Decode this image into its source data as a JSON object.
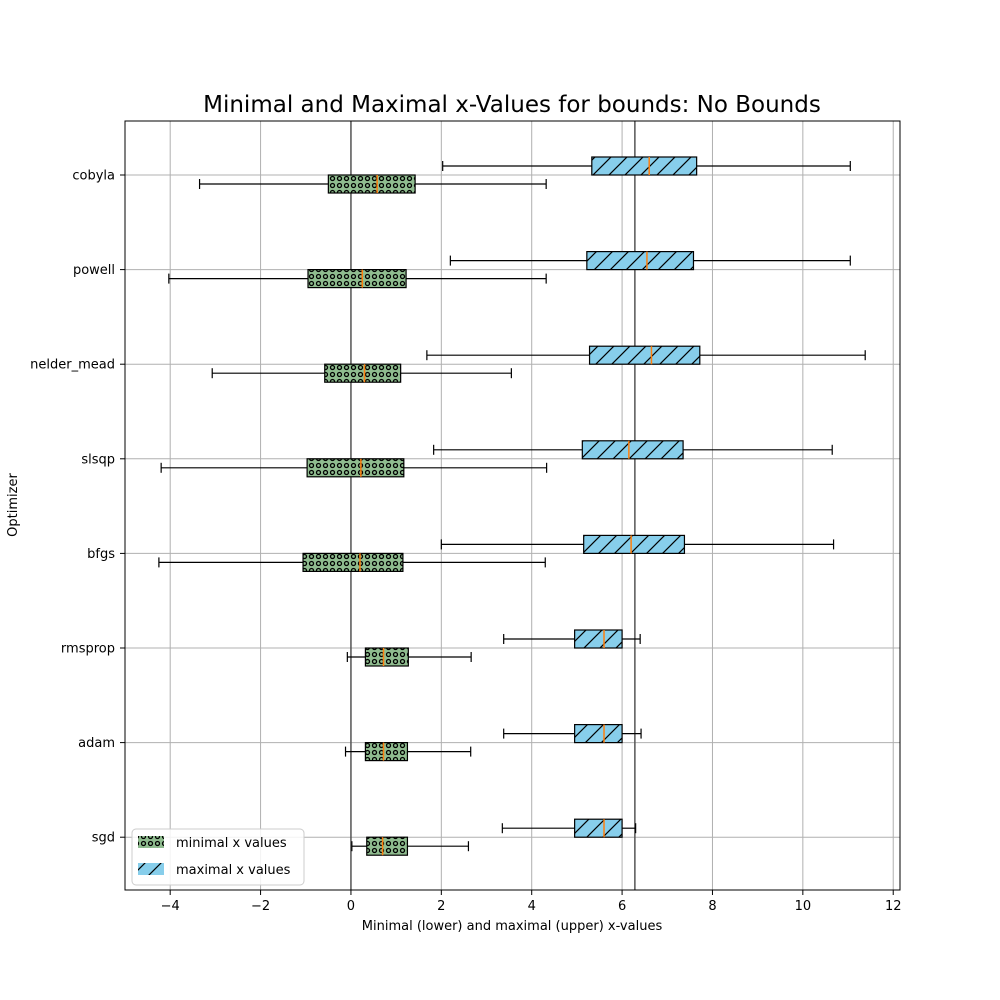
{
  "chart_data": {
    "type": "boxplot-horizontal",
    "title": "Minimal and Maximal x-Values for bounds: No Bounds",
    "xlabel": "Minimal (lower) and maximal (upper) x-values",
    "ylabel": "Optimizer",
    "xlim": [
      -5.0,
      12.15
    ],
    "xticks": [
      -4,
      -2,
      0,
      2,
      4,
      6,
      8,
      10,
      12
    ],
    "xtick_labels": [
      "−4",
      "−2",
      "0",
      "2",
      "4",
      "6",
      "8",
      "10",
      "12"
    ],
    "categories": [
      "cobyla",
      "powell",
      "nelder_mead",
      "slsqp",
      "bfgs",
      "rmsprop",
      "adam",
      "sgd"
    ],
    "reference_lines": [
      0,
      6.283
    ],
    "grid": true,
    "legend": {
      "placement": "lower-left",
      "entries": [
        "minimal x values",
        "maximal x values"
      ]
    },
    "series": [
      {
        "name": "minimal x values",
        "color": "#8fbc8f",
        "hatch": "dots",
        "median_color": "#ff7f0e",
        "boxes": [
          {
            "whislo": -3.35,
            "q1": -0.5,
            "med": 0.58,
            "q3": 1.42,
            "whishi": 4.32
          },
          {
            "whislo": -4.03,
            "q1": -0.95,
            "med": 0.25,
            "q3": 1.22,
            "whishi": 4.32
          },
          {
            "whislo": -3.07,
            "q1": -0.58,
            "med": 0.3,
            "q3": 1.1,
            "whishi": 3.55
          },
          {
            "whislo": -4.2,
            "q1": -0.97,
            "med": 0.22,
            "q3": 1.17,
            "whishi": 4.33
          },
          {
            "whislo": -4.25,
            "q1": -1.06,
            "med": 0.2,
            "q3": 1.15,
            "whishi": 4.3
          },
          {
            "whislo": -0.08,
            "q1": 0.32,
            "med": 0.72,
            "q3": 1.27,
            "whishi": 2.66
          },
          {
            "whislo": -0.12,
            "q1": 0.32,
            "med": 0.72,
            "q3": 1.25,
            "whishi": 2.65
          },
          {
            "whislo": 0.02,
            "q1": 0.35,
            "med": 0.7,
            "q3": 1.25,
            "whishi": 2.6
          }
        ]
      },
      {
        "name": "maximal x values",
        "color": "#87ceeb",
        "hatch": "diagonal",
        "median_color": "#ff7f0e",
        "boxes": [
          {
            "whislo": 2.03,
            "q1": 5.33,
            "med": 6.6,
            "q3": 7.65,
            "whishi": 11.05
          },
          {
            "whislo": 2.2,
            "q1": 5.22,
            "med": 6.55,
            "q3": 7.58,
            "whishi": 11.05
          },
          {
            "whislo": 1.68,
            "q1": 5.28,
            "med": 6.65,
            "q3": 7.72,
            "whishi": 11.38
          },
          {
            "whislo": 1.83,
            "q1": 5.12,
            "med": 6.15,
            "q3": 7.35,
            "whishi": 10.65
          },
          {
            "whislo": 2.0,
            "q1": 5.15,
            "med": 6.2,
            "q3": 7.38,
            "whishi": 10.68
          },
          {
            "whislo": 3.38,
            "q1": 4.95,
            "med": 5.6,
            "q3": 6.0,
            "whishi": 6.4
          },
          {
            "whislo": 3.38,
            "q1": 4.95,
            "med": 5.6,
            "q3": 6.0,
            "whishi": 6.42
          },
          {
            "whislo": 3.35,
            "q1": 4.95,
            "med": 5.6,
            "q3": 6.0,
            "whishi": 6.3
          }
        ]
      }
    ]
  }
}
